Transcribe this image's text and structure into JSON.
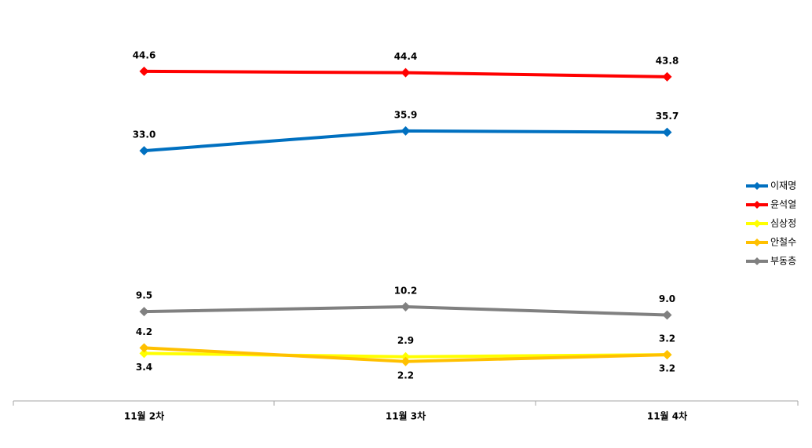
{
  "chart_data": {
    "type": "line",
    "categories": [
      "11월 2차",
      "11월 3차",
      "11월 4차"
    ],
    "ylim": [
      0,
      47
    ],
    "legend": "right",
    "series": [
      {
        "name": "이재명",
        "color": "#0070c0",
        "values": [
          33.0,
          35.9,
          35.7
        ],
        "value_labels": [
          "33.0",
          "35.9",
          "35.7"
        ]
      },
      {
        "name": "윤석열",
        "color": "#ff0000",
        "values": [
          44.6,
          44.4,
          43.8
        ],
        "value_labels": [
          "44.6",
          "44.4",
          "43.8"
        ]
      },
      {
        "name": "심상정",
        "color": "#ffff00",
        "values": [
          3.4,
          2.9,
          3.2
        ],
        "value_labels": [
          "3.4",
          "2.9",
          "3.2"
        ]
      },
      {
        "name": "안철수",
        "color": "#ffc000",
        "values": [
          4.2,
          2.2,
          3.2
        ],
        "value_labels": [
          "4.2",
          "2.2",
          "3.2"
        ]
      },
      {
        "name": "부동층",
        "color": "#808080",
        "values": [
          9.5,
          10.2,
          9.0
        ],
        "value_labels": [
          "9.5",
          "10.2",
          "9.0"
        ]
      }
    ]
  }
}
